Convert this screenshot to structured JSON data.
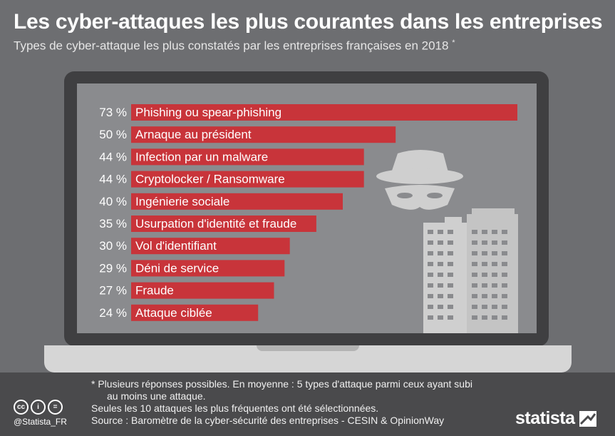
{
  "title": "Les cyber-attaques les plus courantes dans les entreprises",
  "subtitle": "Types de cyber-attaque les plus constatés par les entreprises françaises en 2018",
  "subtitle_marker": "*",
  "chart_data": {
    "type": "bar",
    "orientation": "horizontal",
    "categories": [
      "Phishing ou spear-phishing",
      "Arnaque au président",
      "Infection par un malware",
      "Cryptolocker / Ransomware",
      "Ingénierie sociale",
      "Usurpation d'identité et fraude",
      "Vol d'identifiant",
      "Déni de service",
      "Fraude",
      "Attaque ciblée"
    ],
    "values": [
      73,
      50,
      44,
      44,
      40,
      35,
      30,
      29,
      27,
      24
    ],
    "value_labels": [
      "73 %",
      "50 %",
      "44 %",
      "44 %",
      "40 %",
      "35 %",
      "30 %",
      "29 %",
      "27 %",
      "24 %"
    ],
    "unit": "%",
    "bar_color": "#c8343a",
    "xlim": [
      0,
      73
    ]
  },
  "footnotes": {
    "line1": "* Plusieurs réponses possibles. En moyenne : 5 types d'attaque parmi ceux ayant subi",
    "line2": "au moins une attaque.",
    "line3": "Seules les 10 attaques les plus fréquentes ont été sélectionnées.",
    "line4": "Source : Baromètre de la cyber-sécurité des entreprises - CESIN & OpinionWay"
  },
  "license": {
    "icons": [
      "cc-icon",
      "attribution-icon",
      "no-derivatives-icon"
    ],
    "glyphs": [
      "cc",
      "i",
      "="
    ],
    "handle": "@Statista_FR"
  },
  "brand": {
    "name": "statista",
    "icon": "statista-logo-icon"
  },
  "colors": {
    "background": "#6d6e71",
    "screen": "#8a8b8e",
    "bar": "#c8343a",
    "illustration": "#cfcfcf"
  }
}
